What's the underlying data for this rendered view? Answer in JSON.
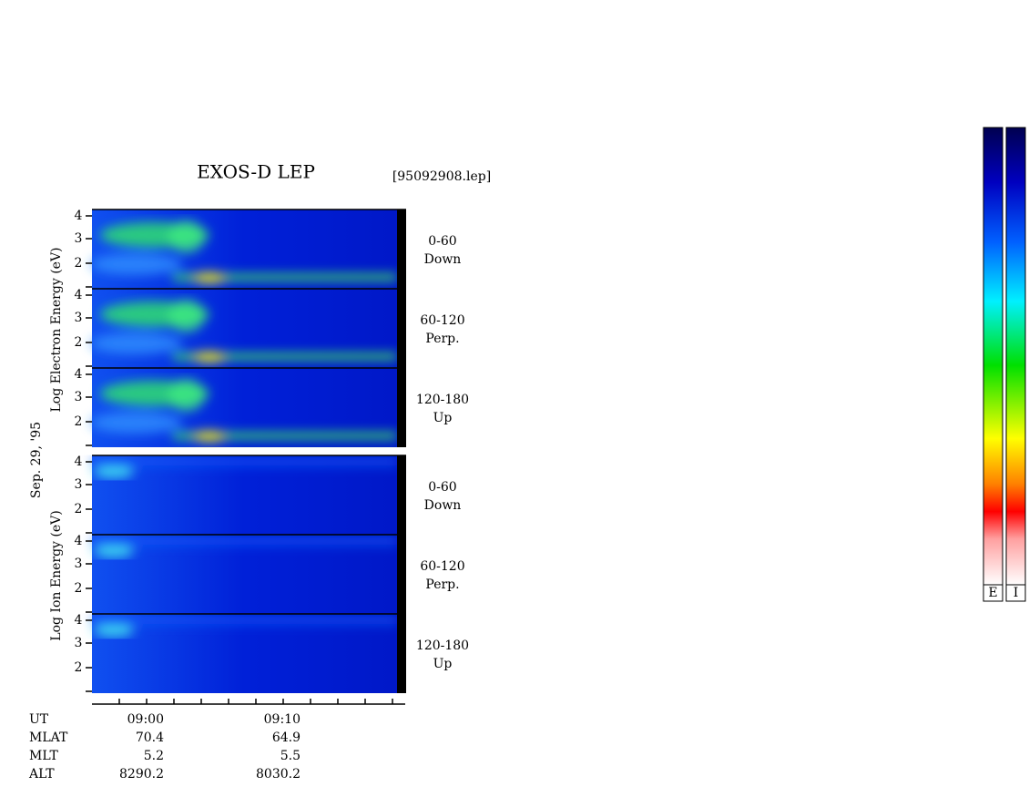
{
  "title": "EXOS-D LEP",
  "file": "[95092908.lep]",
  "date": "Sep. 29, '95",
  "electron_label": "Log  Electron  Energy  (eV)",
  "ion_label": "Log  Ion  Energy  (eV)",
  "panels": [
    {
      "ticks": [
        4,
        3,
        2
      ],
      "angle": "0-60",
      "direction": "Down"
    },
    {
      "ticks": [
        4,
        3,
        2
      ],
      "angle": "60-120",
      "direction": "Perp."
    },
    {
      "ticks": [
        4,
        3,
        2
      ],
      "angle": "120-180",
      "direction": "Up"
    },
    {
      "ticks": [
        4,
        3,
        2
      ],
      "angle": "0-60",
      "direction": "Down"
    },
    {
      "ticks": [
        4,
        3,
        2
      ],
      "angle": "60-120",
      "direction": "Perp."
    },
    {
      "ticks": [
        4,
        3,
        2
      ],
      "angle": "120-180",
      "direction": "Up"
    }
  ],
  "time_axis": {
    "rows": [
      {
        "label": "UT",
        "values": [
          "09:00",
          "09:10"
        ]
      },
      {
        "label": "MLAT",
        "values": [
          "70.4",
          "64.9"
        ]
      },
      {
        "label": "MLT",
        "values": [
          "5.2",
          "5.5"
        ]
      },
      {
        "label": "ALT",
        "values": [
          "8290.2",
          "8030.2"
        ]
      }
    ]
  },
  "colorbars": [
    "E",
    "I"
  ]
}
